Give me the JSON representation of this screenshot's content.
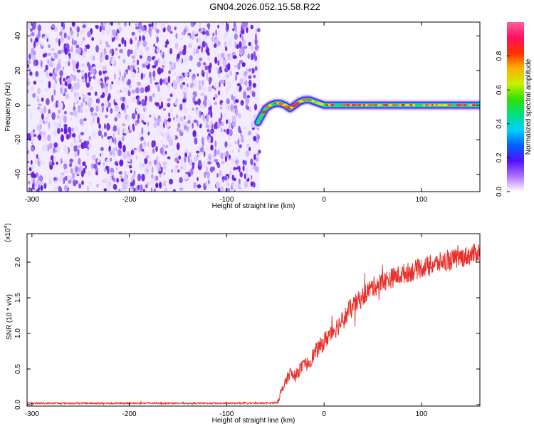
{
  "title": "GN04.2026.052.15.58.R22",
  "colors": {
    "snr_line": "#e8302a",
    "frame": "#000000",
    "background": "#ffffff"
  },
  "chart_data": [
    {
      "type": "heatmap",
      "xlabel": "Height of straight line (km)",
      "ylabel": "Frequency (Hz)",
      "xlim": [
        -305,
        160
      ],
      "ylim": [
        -50,
        48
      ],
      "xticks": [
        -300,
        -200,
        -100,
        0,
        100
      ],
      "xtick_labels": [
        "-300",
        "-200",
        "-100",
        "0",
        "100"
      ],
      "yticks": [
        -40,
        -20,
        0,
        20,
        40
      ],
      "ytick_labels": [
        "-40",
        "-20",
        "0",
        "20",
        "40"
      ],
      "noise_region": {
        "x_from": -305,
        "x_to": -66
      },
      "signal_track": {
        "x": [
          -68,
          -64,
          -60,
          -55,
          -50,
          -45,
          -40,
          -35,
          -30,
          -25,
          -20,
          -15,
          -10,
          -5,
          0,
          20,
          40,
          60,
          80,
          100,
          120,
          140,
          160
        ],
        "y": [
          -10,
          -6,
          -2,
          0,
          1,
          1,
          0,
          -2,
          0,
          2,
          3,
          3,
          2,
          1,
          0,
          0,
          0,
          0,
          0,
          0,
          0,
          0,
          0
        ]
      },
      "colorbar": {
        "label": "Normalized spectral amplitude",
        "range": [
          0,
          1
        ],
        "ticks": [
          0,
          0.2,
          0.4,
          0.6,
          0.8
        ],
        "tick_labels": [
          "0.0",
          "0.2",
          "0.4",
          "0.6",
          "0.8"
        ],
        "colormap": [
          "#ffffff",
          "#b070ff",
          "#5010ff",
          "#0060ff",
          "#00d0ff",
          "#00e080",
          "#30e000",
          "#c8f000",
          "#ffb000",
          "#ff3000",
          "#ff1060",
          "#ff60a0"
        ]
      }
    },
    {
      "type": "line",
      "xlabel": "Height of straight line (km)",
      "ylabel": "SNR (10 * v/v)",
      "y_multiplier_label": "(x10",
      "y_multiplier_exp": "4",
      "xlim": [
        -305,
        160
      ],
      "ylim": [
        -0.02,
        2.4
      ],
      "xticks": [
        -300,
        -200,
        -100,
        0,
        100
      ],
      "xtick_labels": [
        "-300",
        "-200",
        "-100",
        "0",
        "100"
      ],
      "yticks": [
        0.0,
        0.5,
        1.0,
        1.5,
        2.0
      ],
      "ytick_labels": [
        "0.0",
        "0.5",
        "1.0",
        "1.5",
        "2.0"
      ],
      "series": [
        {
          "x": [
            -305,
            -250,
            -200,
            -150,
            -100,
            -60,
            -48,
            -45,
            -40,
            -35,
            -30,
            -25,
            -20,
            -15,
            -10,
            -5,
            0,
            5,
            10,
            15,
            20,
            25,
            30,
            35,
            40,
            45,
            50,
            60,
            70,
            80,
            90,
            100,
            110,
            120,
            130,
            140,
            150,
            160
          ],
          "values": [
            0.02,
            0.02,
            0.02,
            0.02,
            0.02,
            0.02,
            0.03,
            0.15,
            0.3,
            0.45,
            0.38,
            0.5,
            0.55,
            0.6,
            0.72,
            0.8,
            0.88,
            0.98,
            1.05,
            1.12,
            1.2,
            1.3,
            1.38,
            1.45,
            1.52,
            1.6,
            1.65,
            1.72,
            1.78,
            1.83,
            1.87,
            1.92,
            1.96,
            2.0,
            2.03,
            2.06,
            2.1,
            2.14
          ]
        }
      ]
    }
  ]
}
